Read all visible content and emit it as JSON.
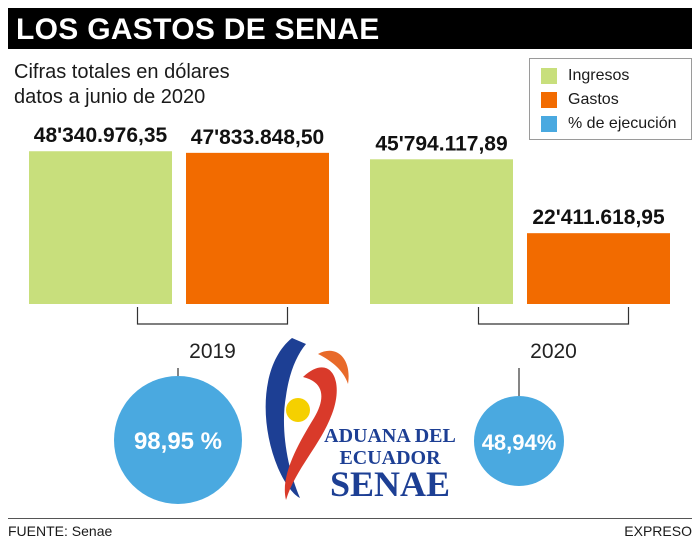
{
  "header": {
    "title": "LOS GASTOS DE SENAE",
    "subtitle_line1": "Cifras totales en dólares",
    "subtitle_line2": "datos a junio de 2020"
  },
  "legend": [
    {
      "label": "Ingresos",
      "color": "#c8df7c"
    },
    {
      "label": "Gastos",
      "color": "#f26b00"
    },
    {
      "label": "% de ejecución",
      "color": "#4aa9e0"
    }
  ],
  "chart_data": {
    "type": "bar",
    "categories": [
      "2019",
      "2020"
    ],
    "series": [
      {
        "name": "Ingresos",
        "values": [
          48340976.35,
          45794117.89
        ],
        "labels": [
          "48'340.976,35",
          "45'794.117,89"
        ],
        "color": "#c8df7c"
      },
      {
        "name": "Gastos",
        "values": [
          47833848.5,
          22411618.95
        ],
        "labels": [
          "47'833.848,50",
          "22'411.618,95"
        ],
        "color": "#f26b00"
      }
    ],
    "execution_pct": {
      "name": "% de ejecución",
      "values": [
        98.95,
        48.94
      ],
      "labels": [
        "98,95 %",
        "48,94%"
      ],
      "color": "#4aa9e0"
    },
    "ylim": [
      0,
      50000000
    ]
  },
  "logo": {
    "line1": "ADUANA DEL",
    "line2": "ECUADOR",
    "line3": "SENAE"
  },
  "footer": {
    "source": "FUENTE: Senae",
    "credit": "EXPRESO"
  }
}
